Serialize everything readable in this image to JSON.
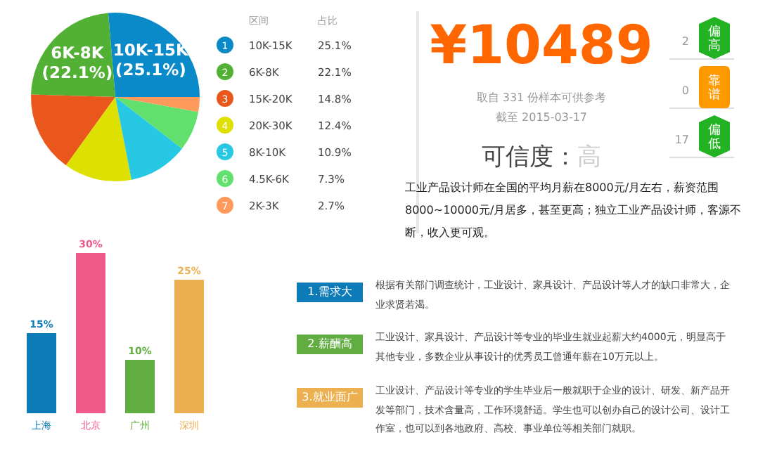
{
  "chart_data": [
    {
      "type": "pie",
      "legend_title": "区间",
      "categories": [
        "10K-15K",
        "6K-8K",
        "15K-20K",
        "20K-30K",
        "8K-10K",
        "4.5K-6K",
        "2K-3K"
      ],
      "values": [
        25.1,
        22.1,
        14.8,
        12.4,
        10.9,
        7.3,
        2.7
      ],
      "colors": [
        "#0a8ac8",
        "#52b034",
        "#ea571c",
        "#dde000",
        "#27c8e4",
        "#62e06e",
        "#ff9a5c"
      ],
      "value_labels": [
        "25.1%",
        "22.1%",
        "14.8%",
        "12.4%",
        "10.9%",
        "7.3%",
        "2.7%"
      ],
      "legend": "right",
      "annotations": [
        "占比",
        "1",
        "2",
        "3",
        "4",
        "5",
        "6",
        "7",
        {
          "text": "10K-15K",
          "x": "10K-15K"
        },
        {
          "text": "(25.1%)",
          "x": "10K-15K"
        },
        {
          "text": "6K-8K",
          "x": "6K-8K"
        },
        {
          "text": "(22.1%)",
          "x": "6K-8K"
        }
      ]
    },
    {
      "type": "other",
      "title": "¥10489",
      "categories": [
        "偏高",
        "靠谱",
        "偏低"
      ],
      "values": [
        2,
        0,
        17
      ],
      "value_labels": [
        "2",
        "0",
        "17"
      ],
      "colors": [
        "#22b322",
        "#ff9900",
        "#22b322"
      ],
      "annotations": [
        "取自 331 份样本可供参考",
        "截至 2015-03-17",
        "可信度：",
        "高",
        "工业产品设计师在全国的平均月薪在8000元/月左右，薪资范围8000~10000元/月居多，甚至更高；独立工业产品设计师，客源不断，收入更可观。"
      ]
    },
    {
      "type": "bar",
      "categories": [
        "上海",
        "北京",
        "广州",
        "深圳"
      ],
      "values": [
        15,
        30,
        10,
        25
      ],
      "colors": [
        "#0c7bb8",
        "#ef5a8a",
        "#62ad41",
        "#ecb051"
      ],
      "value_labels": [
        "15%",
        "30%",
        "10%",
        "25%"
      ]
    },
    {
      "type": "other",
      "categories": [
        "1.需求大",
        "2.薪酬高",
        "3.就业面广"
      ],
      "colors": [
        "#0c7bb8",
        "#62ad41",
        "#ecb051"
      ],
      "annotations": [
        "根据有关部门调查统计，工业设计、家具设计、产品设计等人才的缺口非常大，企业求贤若渴。",
        "工业设计、家具设计、产品设计等专业的毕业生就业起薪大约4000元，明显高于其他专业，多数企业从事设计的优秀员工曾通年薪在10万元以上。",
        "工业设计、产品设计等专业的学生毕业后一般就职于企业的设计、研发、新产品开发等部门，技术含量高，工作环境舒适。学生也可以创办自己的设计公司、设计工作室，也可以到各地政府、高校、事业单位等相关部门就职。"
      ]
    }
  ]
}
